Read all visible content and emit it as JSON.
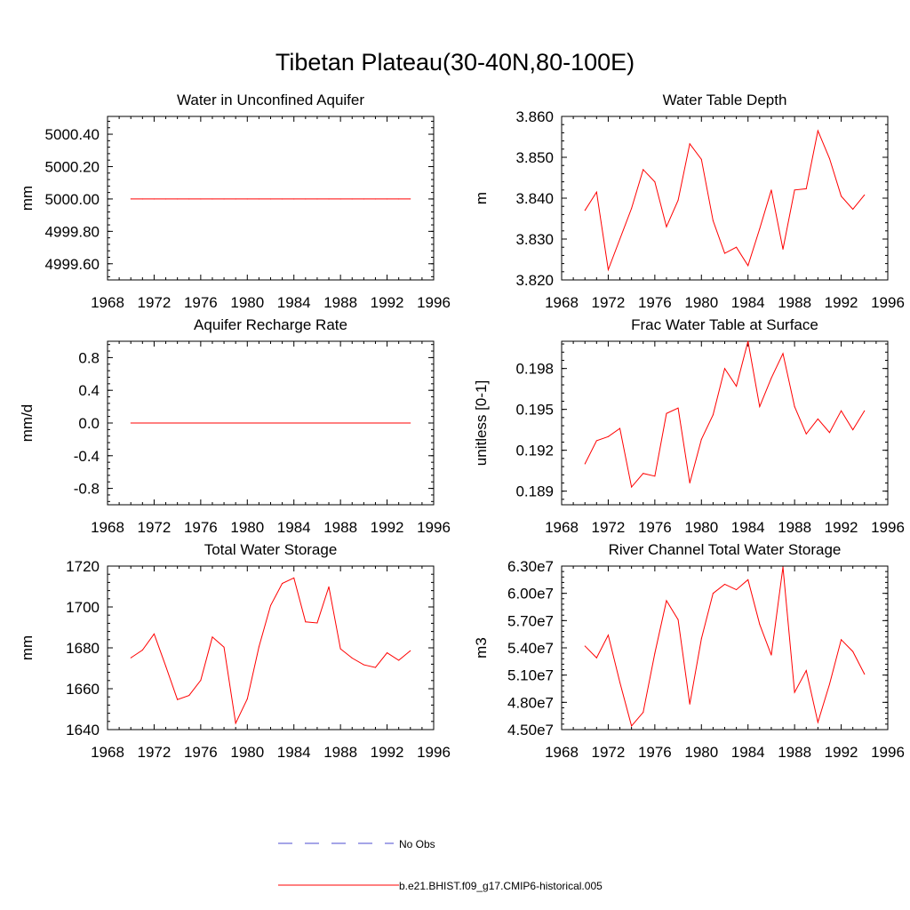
{
  "figure": {
    "title": "Tibetan Plateau(30-40N,80-100E)"
  },
  "legend": [
    {
      "label": "No Obs",
      "color": "#4b4bd0",
      "style": "dashed"
    },
    {
      "label": "b.e21.BHIST.f09_g17.CMIP6-historical.005",
      "color": "#ff0000",
      "style": "solid"
    }
  ],
  "chart_data": [
    {
      "type": "line",
      "title": "Water in Unconfined Aquifer",
      "ylabel": "mm",
      "xlim": [
        1968,
        1996
      ],
      "ylim": [
        4999.5,
        5000.51
      ],
      "xticks": [
        1968,
        1972,
        1976,
        1980,
        1984,
        1988,
        1992,
        1996
      ],
      "yticks": [
        4999.6,
        4999.8,
        5000.0,
        5000.2,
        5000.4
      ],
      "ytick_labels": [
        "4999.60",
        "4999.80",
        "5000.00",
        "5000.20",
        "5000.40"
      ],
      "series": [
        {
          "color": "#ff0000",
          "x": [
            1970,
            1971,
            1972,
            1973,
            1974,
            1975,
            1976,
            1977,
            1978,
            1979,
            1980,
            1981,
            1982,
            1983,
            1984,
            1985,
            1986,
            1987,
            1988,
            1989,
            1990,
            1991,
            1992,
            1993,
            1994
          ],
          "y": [
            5000,
            5000,
            5000,
            5000,
            5000,
            5000,
            5000,
            5000,
            5000,
            5000,
            5000,
            5000,
            5000,
            5000,
            5000,
            5000,
            5000,
            5000,
            5000,
            5000,
            5000,
            5000,
            5000,
            5000,
            5000
          ]
        }
      ]
    },
    {
      "type": "line",
      "title": "Water Table Depth",
      "ylabel": "m",
      "xlim": [
        1968,
        1996
      ],
      "ylim": [
        3.82,
        3.86
      ],
      "xticks": [
        1968,
        1972,
        1976,
        1980,
        1984,
        1988,
        1992,
        1996
      ],
      "yticks": [
        3.82,
        3.83,
        3.84,
        3.85,
        3.86
      ],
      "ytick_labels": [
        "3.820",
        "3.830",
        "3.840",
        "3.850",
        "3.860"
      ],
      "series": [
        {
          "color": "#ff0000",
          "x": [
            1970,
            1971,
            1972,
            1973,
            1974,
            1975,
            1976,
            1977,
            1978,
            1979,
            1980,
            1981,
            1982,
            1983,
            1984,
            1985,
            1986,
            1987,
            1988,
            1989,
            1990,
            1991,
            1992,
            1993,
            1994
          ],
          "y": [
            3.837,
            3.8415,
            3.8225,
            3.83,
            3.8375,
            3.847,
            3.844,
            3.833,
            3.8395,
            3.8533,
            3.8495,
            3.8345,
            3.8265,
            3.828,
            3.8235,
            3.8325,
            3.842,
            3.8275,
            3.842,
            3.8423,
            3.8565,
            3.8497,
            3.8405,
            3.8373,
            3.8408
          ]
        }
      ]
    },
    {
      "type": "line",
      "title": "Aquifer Recharge Rate",
      "ylabel": "mm/d",
      "xlim": [
        1968,
        1996
      ],
      "ylim": [
        -1.0,
        1.0
      ],
      "xticks": [
        1968,
        1972,
        1976,
        1980,
        1984,
        1988,
        1992,
        1996
      ],
      "yticks": [
        -0.8,
        -0.4,
        0.0,
        0.4,
        0.8
      ],
      "ytick_labels": [
        "-0.8",
        "-0.4",
        "0.0",
        "0.4",
        "0.8"
      ],
      "series": [
        {
          "color": "#ff0000",
          "x": [
            1970,
            1971,
            1972,
            1973,
            1974,
            1975,
            1976,
            1977,
            1978,
            1979,
            1980,
            1981,
            1982,
            1983,
            1984,
            1985,
            1986,
            1987,
            1988,
            1989,
            1990,
            1991,
            1992,
            1993,
            1994
          ],
          "y": [
            0,
            0,
            0,
            0,
            0,
            0,
            0,
            0,
            0,
            0,
            0,
            0,
            0,
            0,
            0,
            0,
            0,
            0,
            0,
            0,
            0,
            0,
            0,
            0,
            0
          ]
        }
      ]
    },
    {
      "type": "line",
      "title": "Frac Water Table at Surface",
      "ylabel": "unitless [0-1]",
      "xlim": [
        1968,
        1996
      ],
      "ylim": [
        0.188,
        0.2
      ],
      "xticks": [
        1968,
        1972,
        1976,
        1980,
        1984,
        1988,
        1992,
        1996
      ],
      "yticks": [
        0.189,
        0.192,
        0.195,
        0.198
      ],
      "ytick_labels": [
        "0.189",
        "0.192",
        "0.195",
        "0.198"
      ],
      "series": [
        {
          "color": "#ff0000",
          "x": [
            1970,
            1971,
            1972,
            1973,
            1974,
            1975,
            1976,
            1977,
            1978,
            1979,
            1980,
            1981,
            1982,
            1983,
            1984,
            1985,
            1986,
            1987,
            1988,
            1989,
            1990,
            1991,
            1992,
            1993,
            1994
          ],
          "y": [
            0.191,
            0.1927,
            0.193,
            0.1936,
            0.1893,
            0.1903,
            0.1901,
            0.1947,
            0.1951,
            0.1896,
            0.1928,
            0.1946,
            0.198,
            0.1967,
            0.2,
            0.1952,
            0.1973,
            0.1991,
            0.1952,
            0.1932,
            0.1943,
            0.1933,
            0.1949,
            0.1935,
            0.1949
          ]
        }
      ]
    },
    {
      "type": "line",
      "title": "Total Water Storage",
      "ylabel": "mm",
      "xlim": [
        1968,
        1996
      ],
      "ylim": [
        1640,
        1720
      ],
      "xticks": [
        1968,
        1972,
        1976,
        1980,
        1984,
        1988,
        1992,
        1996
      ],
      "yticks": [
        1640,
        1660,
        1680,
        1700,
        1720
      ],
      "ytick_labels": [
        "1640",
        "1660",
        "1680",
        "1700",
        "1720"
      ],
      "series": [
        {
          "color": "#ff0000",
          "x": [
            1970,
            1971,
            1972,
            1973,
            1974,
            1975,
            1976,
            1977,
            1978,
            1979,
            1980,
            1981,
            1982,
            1983,
            1984,
            1985,
            1986,
            1987,
            1988,
            1989,
            1990,
            1991,
            1992,
            1993,
            1994
          ],
          "y": [
            1675.1,
            1678.9,
            1686.8,
            1671,
            1654.7,
            1656.7,
            1664.1,
            1685.3,
            1680.3,
            1643.1,
            1655,
            1680.5,
            1700.7,
            1711.5,
            1714.2,
            1692.7,
            1692.2,
            1709.9,
            1679.5,
            1675,
            1671.7,
            1670.4,
            1677.6,
            1673.9,
            1678.6
          ]
        }
      ]
    },
    {
      "type": "line",
      "title": "River Channel Total Water Storage",
      "ylabel": "m3",
      "xlim": [
        1968,
        1996
      ],
      "ylim": [
        45000000,
        63000000
      ],
      "xticks": [
        1968,
        1972,
        1976,
        1980,
        1984,
        1988,
        1992,
        1996
      ],
      "yticks": [
        45000000,
        48000000,
        51000000,
        54000000,
        57000000,
        60000000,
        63000000
      ],
      "ytick_labels": [
        "4.50e7",
        "4.80e7",
        "5.10e7",
        "5.40e7",
        "5.70e7",
        "6.00e7",
        "6.30e7"
      ],
      "series": [
        {
          "color": "#ff0000",
          "x": [
            1970,
            1971,
            1972,
            1973,
            1974,
            1975,
            1976,
            1977,
            1978,
            1979,
            1980,
            1981,
            1982,
            1983,
            1984,
            1985,
            1986,
            1987,
            1988,
            1989,
            1990,
            1991,
            1992,
            1993,
            1994
          ],
          "y": [
            54200000,
            52900000,
            55400000,
            50200000,
            45400000,
            46900000,
            53400000,
            59200000,
            57100000,
            47800000,
            55000000,
            60000000,
            61000000,
            60400000,
            61500000,
            56600000,
            53200000,
            62900000,
            49100000,
            51500000,
            45800000,
            50000000,
            54900000,
            53600000,
            51100000
          ]
        }
      ]
    }
  ]
}
